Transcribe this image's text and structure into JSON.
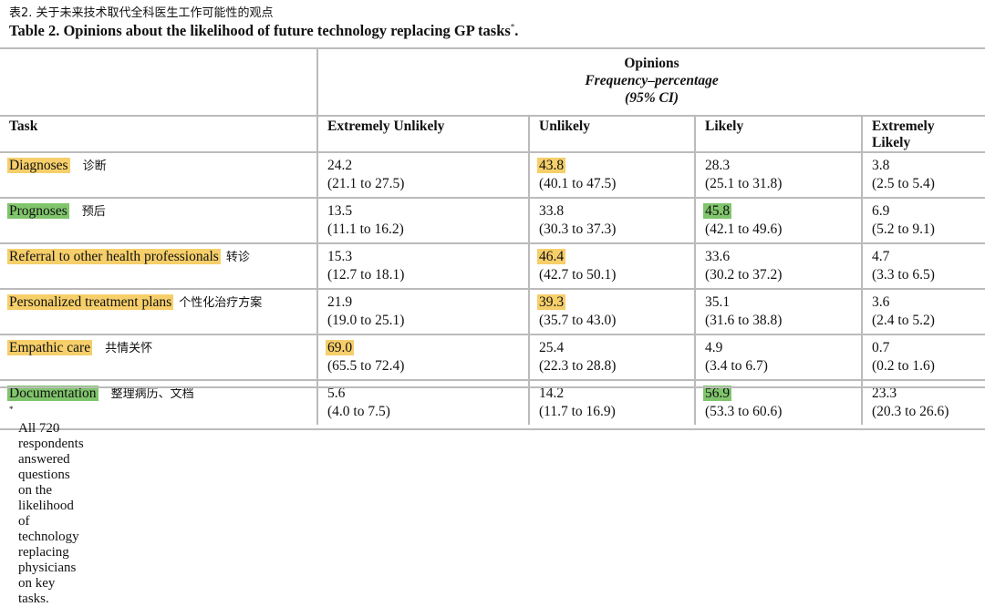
{
  "title_cn": "表2. 关于未来技术取代全科医生工作可能性的观点",
  "title_en": "Table 2.  Opinions about the likelihood of future technology replacing GP tasks",
  "title_mark": "*",
  "title_end": ".",
  "group_header": {
    "line1": "Opinions",
    "line2": "Frequency–percentage",
    "line3": "(95% CI)"
  },
  "columns": [
    "Task",
    "Extremely Unlikely",
    "Unlikely",
    "Likely",
    "Extremely Likely"
  ],
  "colors": {
    "yellow": "#f6cf6a",
    "green": "#80c56c"
  },
  "rows": [
    {
      "task": "Diagnoses",
      "task_cn": "诊断",
      "task_color": "#f6cf6a",
      "hl": 1,
      "cells": [
        [
          "24.2",
          "(21.1 to 27.5)"
        ],
        [
          "43.8",
          "(40.1 to 47.5)"
        ],
        [
          "28.3",
          "(25.1 to 31.8)"
        ],
        [
          "3.8",
          "(2.5 to 5.4)"
        ]
      ]
    },
    {
      "task": "Prognoses",
      "task_cn": "预后",
      "task_color": "#80c56c",
      "hl": 2,
      "cells": [
        [
          "13.5",
          "(11.1 to 16.2)"
        ],
        [
          "33.8",
          "(30.3 to 37.3)"
        ],
        [
          "45.8",
          "(42.1 to 49.6)"
        ],
        [
          "6.9",
          "(5.2 to 9.1)"
        ]
      ]
    },
    {
      "task": "Referral to other health professionals",
      "task_cn": "转诊",
      "task_color": "#f6cf6a",
      "hl": 1,
      "cells": [
        [
          "15.3",
          "(12.7 to 18.1)"
        ],
        [
          "46.4",
          "(42.7 to 50.1)"
        ],
        [
          "33.6",
          "(30.2 to 37.2)"
        ],
        [
          "4.7",
          "(3.3 to 6.5)"
        ]
      ]
    },
    {
      "task": "Personalized treatment plans",
      "task_cn": "个性化治疗方案",
      "task_color": "#f6cf6a",
      "hl": 1,
      "cells": [
        [
          "21.9",
          "(19.0 to 25.1)"
        ],
        [
          "39.3",
          "(35.7 to 43.0)"
        ],
        [
          "35.1",
          "(31.6 to 38.8)"
        ],
        [
          "3.6",
          "(2.4 to 5.2)"
        ]
      ]
    },
    {
      "task": "Empathic care",
      "task_cn": "共情关怀",
      "task_color": "#f6cf6a",
      "hl": 0,
      "cells": [
        [
          "69.0",
          "(65.5 to 72.4)"
        ],
        [
          "25.4",
          "(22.3 to 28.8)"
        ],
        [
          "4.9",
          "(3.4 to 6.7)"
        ],
        [
          "0.7",
          "(0.2 to 1.6)"
        ]
      ]
    },
    {
      "task": "Documentation",
      "task_cn": "整理病历、文档",
      "task_color": "#80c56c",
      "hl": 2,
      "cells": [
        [
          "5.6",
          "(4.0 to 7.5)"
        ],
        [
          "14.2",
          "(11.7 to 16.9)"
        ],
        [
          "56.9",
          "(53.3 to 60.6)"
        ],
        [
          "23.3",
          "(20.3 to 26.6)"
        ]
      ]
    }
  ],
  "footnote_mark": "*",
  "footnote": "All 720 respondents answered questions on the likelihood of technology replacing physicians on key tasks."
}
